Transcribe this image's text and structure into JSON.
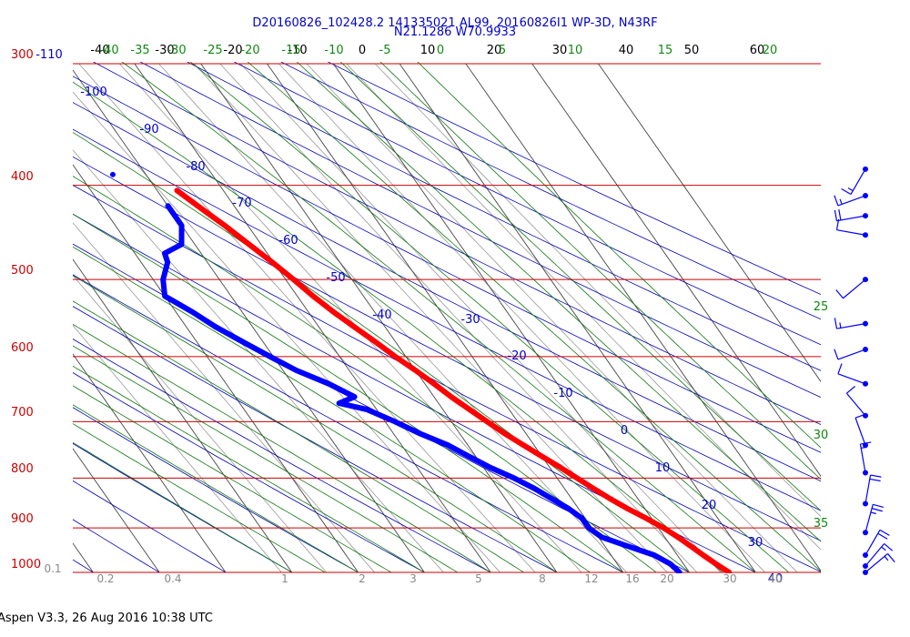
{
  "chart_data": {
    "type": "skew-t",
    "title": "D20160826_102428.2 141335021 AL99, 20160826I1 WP-3D, N43RF",
    "subtitle": "N21.1286 W70.9933",
    "footer": "Aspen V3.3, 26 Aug 2016  10:38 UTC",
    "pressure_levels": [
      300,
      400,
      500,
      600,
      700,
      800,
      900,
      1000
    ],
    "temperature_ticks": [
      -40,
      -30,
      -20,
      -10,
      0,
      10,
      20,
      30,
      40,
      50,
      60
    ],
    "dry_adiabat_labels": [
      "-110",
      "-100",
      "-90",
      "-80",
      "-70",
      "-60",
      "-50",
      "-40",
      "-30",
      "-20",
      "-10",
      "0",
      "10",
      "20",
      "30",
      "40"
    ],
    "moist_adiabat_labels": [
      "-40",
      "-35",
      "-30",
      "-25",
      "-20",
      "-15",
      "-10",
      "-5",
      "0",
      "5",
      "10",
      "15",
      "20",
      "25",
      "30",
      "35"
    ],
    "mixing_ratio_labels": [
      "0.1",
      "0.2",
      "0.4",
      "1",
      "2",
      "3",
      "5",
      "8",
      "12",
      "16",
      "20",
      "30",
      "40"
    ],
    "temperature_profile": [
      {
        "p": 405,
        "t": -17.0
      },
      {
        "p": 420,
        "t": -15.5
      },
      {
        "p": 440,
        "t": -13.5
      },
      {
        "p": 460,
        "t": -11.8
      },
      {
        "p": 480,
        "t": -10.2
      },
      {
        "p": 500,
        "t": -8.8
      },
      {
        "p": 520,
        "t": -7.6
      },
      {
        "p": 540,
        "t": -6.2
      },
      {
        "p": 560,
        "t": -4.6
      },
      {
        "p": 580,
        "t": -3.0
      },
      {
        "p": 600,
        "t": -1.6
      },
      {
        "p": 620,
        "t": 0.0
      },
      {
        "p": 640,
        "t": 1.4
      },
      {
        "p": 660,
        "t": 2.6
      },
      {
        "p": 680,
        "t": 4.0
      },
      {
        "p": 700,
        "t": 5.4
      },
      {
        "p": 720,
        "t": 6.8
      },
      {
        "p": 740,
        "t": 8.4
      },
      {
        "p": 760,
        "t": 10.0
      },
      {
        "p": 780,
        "t": 11.6
      },
      {
        "p": 800,
        "t": 13.0
      },
      {
        "p": 820,
        "t": 14.4
      },
      {
        "p": 840,
        "t": 15.8
      },
      {
        "p": 860,
        "t": 17.4
      },
      {
        "p": 880,
        "t": 19.2
      },
      {
        "p": 900,
        "t": 20.8
      },
      {
        "p": 920,
        "t": 22.0
      },
      {
        "p": 940,
        "t": 23.0
      },
      {
        "p": 960,
        "t": 23.9
      },
      {
        "p": 980,
        "t": 24.9
      },
      {
        "p": 1000,
        "t": 26.0
      }
    ],
    "dewpoint_profile": [
      {
        "p": 420,
        "t": -20.0
      },
      {
        "p": 440,
        "t": -20.0
      },
      {
        "p": 460,
        "t": -22.0
      },
      {
        "p": 470,
        "t": -25.5
      },
      {
        "p": 480,
        "t": -26.0
      },
      {
        "p": 500,
        "t": -28.5
      },
      {
        "p": 520,
        "t": -30.0
      },
      {
        "p": 540,
        "t": -27.5
      },
      {
        "p": 560,
        "t": -25.5
      },
      {
        "p": 580,
        "t": -23.0
      },
      {
        "p": 600,
        "t": -20.5
      },
      {
        "p": 620,
        "t": -18.0
      },
      {
        "p": 640,
        "t": -14.5
      },
      {
        "p": 660,
        "t": -12.0
      },
      {
        "p": 670,
        "t": -15.0
      },
      {
        "p": 680,
        "t": -11.5
      },
      {
        "p": 700,
        "t": -8.5
      },
      {
        "p": 720,
        "t": -6.0
      },
      {
        "p": 740,
        "t": -3.0
      },
      {
        "p": 760,
        "t": -1.0
      },
      {
        "p": 780,
        "t": 1.0
      },
      {
        "p": 800,
        "t": 3.5
      },
      {
        "p": 820,
        "t": 5.5
      },
      {
        "p": 840,
        "t": 7.0
      },
      {
        "p": 860,
        "t": 8.5
      },
      {
        "p": 880,
        "t": 9.5
      },
      {
        "p": 900,
        "t": 9.5
      },
      {
        "p": 920,
        "t": 10.5
      },
      {
        "p": 940,
        "t": 13.5
      },
      {
        "p": 960,
        "t": 16.5
      },
      {
        "p": 980,
        "t": 18.0
      },
      {
        "p": 1000,
        "t": 18.5
      }
    ],
    "isolated_point": {
      "p": 390,
      "t": -25.0
    },
    "wind_barbs": [
      {
        "p": 385,
        "dir": 210,
        "spd": 15
      },
      {
        "p": 410,
        "dir": 250,
        "spd": 15
      },
      {
        "p": 430,
        "dir": 260,
        "spd": 20
      },
      {
        "p": 450,
        "dir": 280,
        "spd": 10
      },
      {
        "p": 500,
        "dir": 230,
        "spd": 10
      },
      {
        "p": 555,
        "dir": 260,
        "spd": 15
      },
      {
        "p": 590,
        "dir": 250,
        "spd": 10
      },
      {
        "p": 640,
        "dir": 290,
        "spd": 10
      },
      {
        "p": 690,
        "dir": 320,
        "spd": 10
      },
      {
        "p": 740,
        "dir": 340,
        "spd": 10
      },
      {
        "p": 790,
        "dir": 350,
        "spd": 15
      },
      {
        "p": 850,
        "dir": 10,
        "spd": 20
      },
      {
        "p": 910,
        "dir": 15,
        "spd": 25
      },
      {
        "p": 960,
        "dir": 30,
        "spd": 20
      },
      {
        "p": 985,
        "dir": 40,
        "spd": 15
      },
      {
        "p": 1000,
        "dir": 50,
        "spd": 15
      }
    ],
    "colors": {
      "temperature": "#ff0000",
      "dewpoint": "#0000ff",
      "isobar": "#cc0000",
      "isotherm": "#000000",
      "dry_adiabat": "#0000bb",
      "moist_adiabat": "#117711",
      "mixing_ratio": "#999999"
    }
  }
}
